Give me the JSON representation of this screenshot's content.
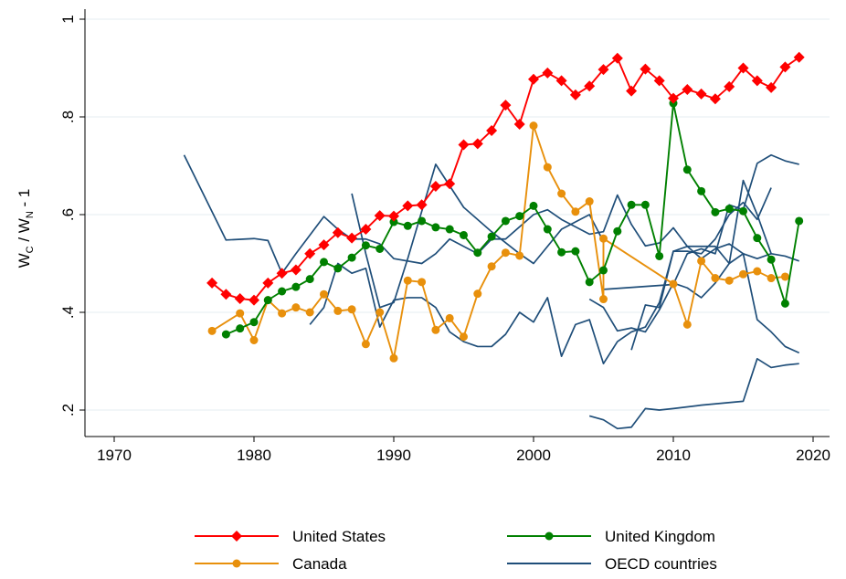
{
  "chart_data": {
    "type": "line",
    "y_label": [
      "W",
      "C",
      " / W",
      "N",
      " - 1"
    ],
    "xlim": [
      1970,
      2020
    ],
    "xticks": [
      1970,
      1980,
      1990,
      2000,
      2010,
      2020
    ],
    "ylim": [
      0.2,
      1
    ],
    "yticks": [
      {
        "value": 0.2,
        "label": ".2"
      },
      {
        "value": 0.4,
        "label": ".4"
      },
      {
        "value": 0.6,
        "label": ".6"
      },
      {
        "value": 0.8,
        "label": ".8"
      },
      1
    ],
    "grid": true,
    "legend": "bottom",
    "series": [
      {
        "name": "United States",
        "color": "#ff0000",
        "marker": "diamond",
        "x": [
          1977,
          1978,
          1979,
          1980,
          1981,
          1982,
          1983,
          1984,
          1985,
          1986,
          1987,
          1988,
          1989,
          1990,
          1991,
          1992,
          1993,
          1994,
          1995,
          1996,
          1997,
          1998,
          1999,
          2000,
          2001,
          2002,
          2003,
          2004,
          2005,
          2006,
          2007,
          2008,
          2009,
          2010,
          2011,
          2012,
          2013,
          2014,
          2015,
          2016,
          2017,
          2018,
          2019
        ],
        "values": [
          0.46,
          0.437,
          0.428,
          0.425,
          0.46,
          0.48,
          0.487,
          0.52,
          0.538,
          0.563,
          0.552,
          0.57,
          0.598,
          0.597,
          0.618,
          0.62,
          0.658,
          0.663,
          0.743,
          0.745,
          0.772,
          0.824,
          0.785,
          0.877,
          0.89,
          0.874,
          0.845,
          0.863,
          0.897,
          0.92,
          0.853,
          0.898,
          0.874,
          0.838,
          0.856,
          0.847,
          0.837,
          0.862,
          0.9,
          0.874,
          0.86,
          0.902,
          0.922
        ]
      },
      {
        "name": "United Kingdom",
        "color": "#008000",
        "marker": "circle",
        "x": [
          1978,
          1979,
          1980,
          1981,
          1982,
          1983,
          1984,
          1985,
          1986,
          1987,
          1988,
          1989,
          1990,
          1991,
          1992,
          1993,
          1994,
          1995,
          1996,
          1997,
          1998,
          1999,
          2000,
          2001,
          2002,
          2003,
          2004,
          2005,
          2006,
          2007,
          2008,
          2009,
          2010,
          2011,
          2012,
          2013,
          2014,
          2015,
          2016,
          2017,
          2018,
          2019
        ],
        "values": [
          0.355,
          0.367,
          0.38,
          0.425,
          0.443,
          0.452,
          0.468,
          0.503,
          0.49,
          0.512,
          0.537,
          0.53,
          0.585,
          0.577,
          0.587,
          0.574,
          0.57,
          0.558,
          0.522,
          0.555,
          0.587,
          0.597,
          0.618,
          0.57,
          0.523,
          0.525,
          0.462,
          0.486,
          0.566,
          0.62,
          0.62,
          0.515,
          0.828,
          0.692,
          0.648,
          0.605,
          0.612,
          0.607,
          0.552,
          0.508,
          0.418,
          0.587
        ]
      },
      {
        "name": "Canada",
        "color": "#e8900c",
        "marker": "circle",
        "x": [
          1977,
          1979,
          1980,
          1981,
          1982,
          1983,
          1984,
          1985,
          1986,
          1987,
          1988,
          1989,
          1990,
          1991,
          1992,
          1993,
          1994,
          1995,
          1996,
          1997,
          1998,
          1999,
          2000,
          2001,
          2002,
          2003,
          2004,
          2005,
          2005,
          2010,
          2011,
          2012,
          2013,
          2014,
          2015,
          2016,
          2017,
          2018
        ],
        "values": [
          0.362,
          0.398,
          0.343,
          0.425,
          0.398,
          0.41,
          0.4,
          0.437,
          0.403,
          0.406,
          0.335,
          0.4,
          0.306,
          0.465,
          0.462,
          0.364,
          0.388,
          0.35,
          0.438,
          0.494,
          0.522,
          0.516,
          0.782,
          0.697,
          0.643,
          0.606,
          0.627,
          0.427,
          0.551,
          0.458,
          0.375,
          0.505,
          0.47,
          0.465,
          0.478,
          0.484,
          0.47,
          0.473
        ]
      },
      {
        "name": "OECD countries",
        "color": "#1f4e79",
        "marker": "none",
        "lines": [
          {
            "x": [
              1975,
              1978,
              1980,
              1981,
              1982,
              1983,
              1985,
              1986,
              1987,
              1988,
              1989,
              1990,
              1992,
              1993,
              1994,
              1996,
              1997,
              1998,
              2000,
              2001,
              2002,
              2004,
              2005,
              2006,
              2007,
              2008,
              2009,
              2010,
              2011,
              2012,
              2013,
              2014,
              2015,
              2016,
              2017,
              2018,
              2019
            ],
            "values": [
              0.722,
              0.548,
              0.551,
              0.547,
              0.48,
              0.52,
              0.596,
              0.57,
              0.55,
              0.55,
              0.54,
              0.51,
              0.5,
              0.52,
              0.55,
              0.52,
              0.55,
              0.55,
              0.6,
              0.61,
              0.59,
              0.56,
              0.565,
              0.64,
              0.58,
              0.536,
              0.542,
              0.573,
              0.535,
              0.51,
              0.53,
              0.54,
              0.52,
              0.51,
              0.52,
              0.515,
              0.505
            ]
          },
          {
            "x": [
              1984,
              1985,
              1986,
              1987,
              1988,
              1989,
              1990,
              1991,
              1992,
              1993,
              1994,
              1995,
              1996,
              1997,
              1998,
              1999,
              2000,
              2001,
              2002,
              2003,
              2004,
              2005,
              2006,
              2007,
              2008,
              2009,
              2010,
              2011,
              2012,
              2013,
              2014,
              2015,
              2016,
              2017
            ],
            "values": [
              0.375,
              0.41,
              0.5,
              0.48,
              0.49,
              0.37,
              0.425,
              0.43,
              0.43,
              0.41,
              0.36,
              0.34,
              0.33,
              0.33,
              0.355,
              0.4,
              0.38,
              0.43,
              0.31,
              0.375,
              0.385,
              0.295,
              0.34,
              0.36,
              0.37,
              0.42,
              0.525,
              0.525,
              0.52,
              0.55,
              0.6,
              0.625,
              0.59,
              0.655
            ]
          },
          {
            "x": [
              1987,
              1988,
              1989,
              1990,
              1991,
              1993,
              1995,
              1997,
              1999,
              2000,
              2002,
              2004,
              2005
            ],
            "values": [
              0.643,
              0.52,
              0.41,
              0.42,
              0.51,
              0.703,
              0.615,
              0.565,
              0.52,
              0.5,
              0.57,
              0.6,
              0.545
            ]
          },
          {
            "x": [
              2004,
              2005,
              2006,
              2007,
              2008,
              2009,
              2010,
              2011,
              2012,
              2013,
              2014,
              2015,
              2016,
              2017,
              2018,
              2019
            ],
            "values": [
              0.427,
              0.41,
              0.362,
              0.368,
              0.36,
              0.405,
              0.46,
              0.45,
              0.43,
              0.46,
              0.5,
              0.52,
              0.385,
              0.36,
              0.33,
              0.317
            ]
          },
          {
            "x": [
              2004,
              2005,
              2006,
              2007,
              2008,
              2009,
              2010,
              2012,
              2015,
              2016,
              2017,
              2018,
              2019
            ],
            "values": [
              0.188,
              0.18,
              0.162,
              0.165,
              0.203,
              0.2,
              0.203,
              0.21,
              0.218,
              0.305,
              0.287,
              0.292,
              0.295
            ]
          },
          {
            "x": [
              2005,
              2010,
              2011,
              2012,
              2013,
              2014,
              2015,
              2016,
              2017,
              2018,
              2019
            ],
            "values": [
              0.447,
              0.457,
              0.52,
              0.53,
              0.52,
              0.62,
              0.61,
              0.705,
              0.722,
              0.71,
              0.703
            ]
          },
          {
            "x": [
              2007,
              2008,
              2009,
              2010,
              2011,
              2012,
              2013,
              2014,
              2015,
              2016,
              2017
            ],
            "values": [
              0.323,
              0.415,
              0.41,
              0.525,
              0.535,
              0.535,
              0.535,
              0.5,
              0.67,
              0.6,
              0.52
            ]
          }
        ]
      }
    ]
  }
}
